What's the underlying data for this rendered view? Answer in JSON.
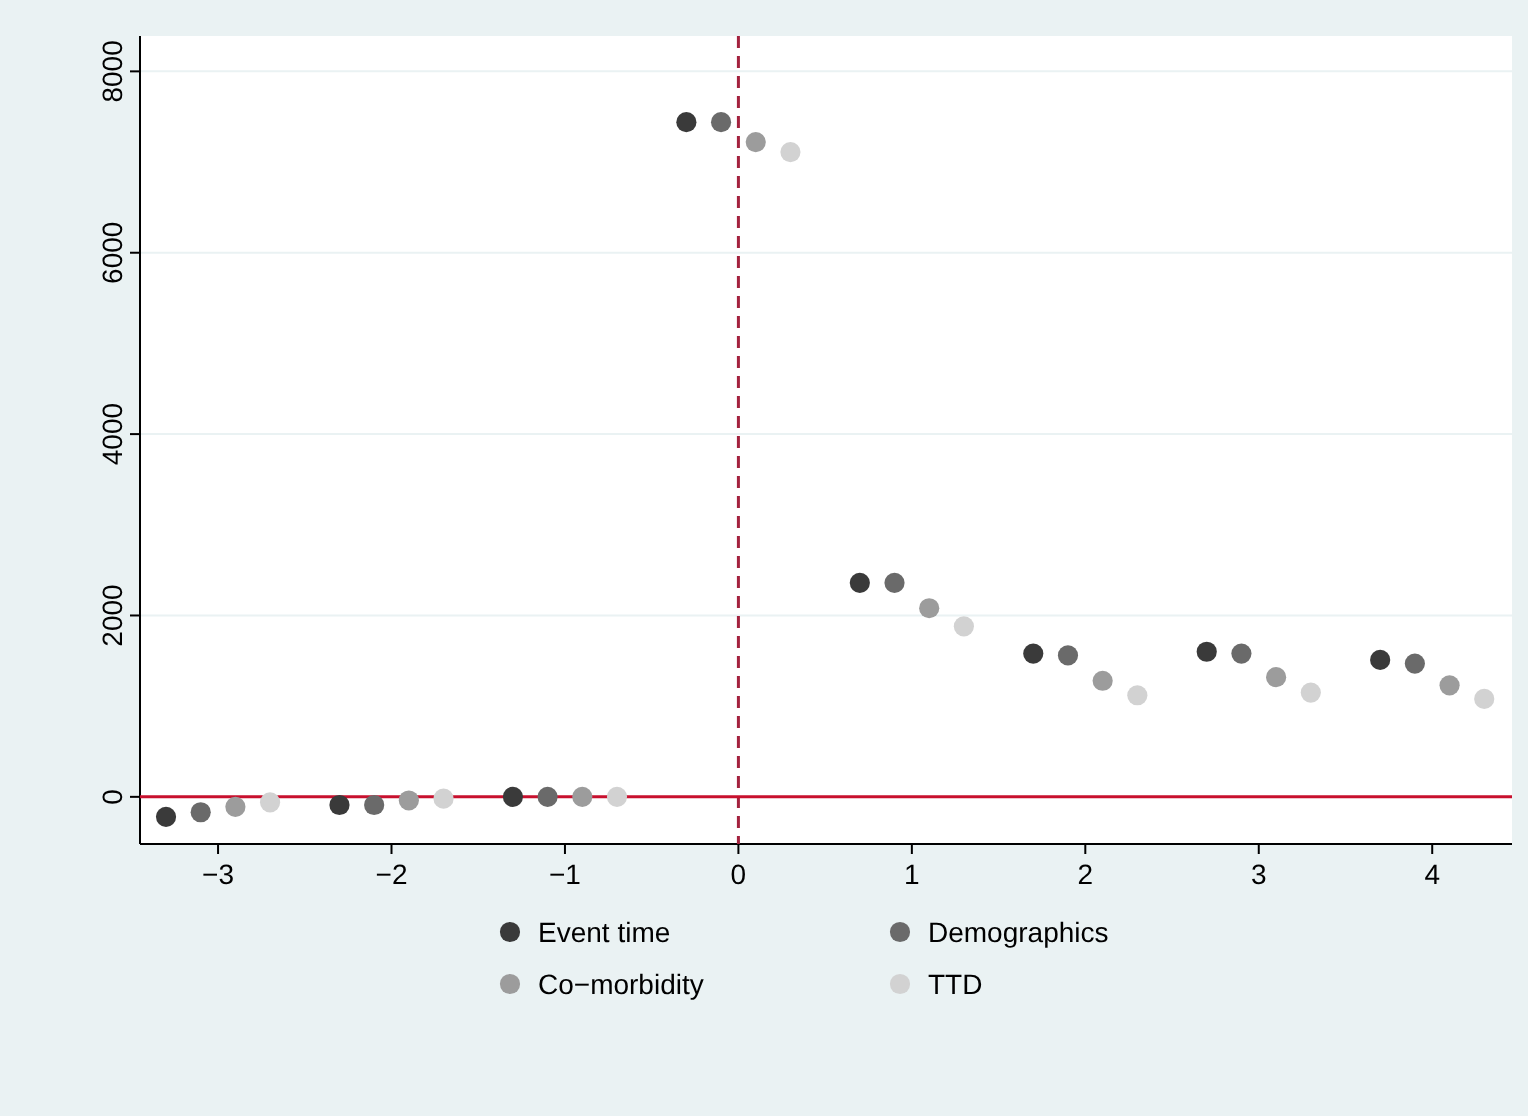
{
  "chart_data": {
    "type": "scatter",
    "series": [
      {
        "name": "Event time",
        "color": "#3a3a3a",
        "x": [
          -3.3,
          -2.3,
          -1.3,
          -0.3,
          0.7,
          1.7,
          2.7,
          3.7
        ],
        "values": [
          -220,
          -90,
          0,
          7440,
          2360,
          1580,
          1600,
          1510
        ]
      },
      {
        "name": "Demographics",
        "color": "#6a6a6a",
        "x": [
          -3.1,
          -2.1,
          -1.1,
          -0.1,
          0.9,
          1.9,
          2.9,
          3.9
        ],
        "values": [
          -170,
          -90,
          0,
          7440,
          2360,
          1560,
          1580,
          1470
        ]
      },
      {
        "name": "Co−morbidity",
        "color": "#9c9c9c",
        "x": [
          -2.9,
          -1.9,
          -0.9,
          0.1,
          1.1,
          2.1,
          3.1,
          4.1
        ],
        "values": [
          -110,
          -40,
          0,
          7220,
          2080,
          1280,
          1320,
          1230
        ]
      },
      {
        "name": "TTD",
        "color": "#d2d2d2",
        "x": [
          -2.7,
          -1.7,
          -0.7,
          0.3,
          1.3,
          2.3,
          3.3,
          4.3
        ],
        "values": [
          -60,
          -20,
          0,
          7110,
          1880,
          1120,
          1150,
          1080
        ]
      }
    ],
    "xlim": [
      -3.45,
      4.46
    ],
    "xticks": [
      {
        "value": -3,
        "label": "−3"
      },
      {
        "value": -2,
        "label": "−2"
      },
      {
        "value": -1,
        "label": "−1"
      },
      0,
      1,
      2,
      3,
      4
    ],
    "ylim": [
      -520,
      8390
    ],
    "yticks": [
      0,
      2000,
      4000,
      6000,
      8000
    ],
    "grid": "y",
    "marker": "circle",
    "legend": "bottom",
    "ref_lines": [
      {
        "axis": "x",
        "value": 0,
        "color": "#a3223e",
        "line_style": "dashed"
      },
      {
        "axis": "y",
        "value": 0,
        "color": "#c8102e",
        "line_style": "solid"
      }
    ]
  }
}
